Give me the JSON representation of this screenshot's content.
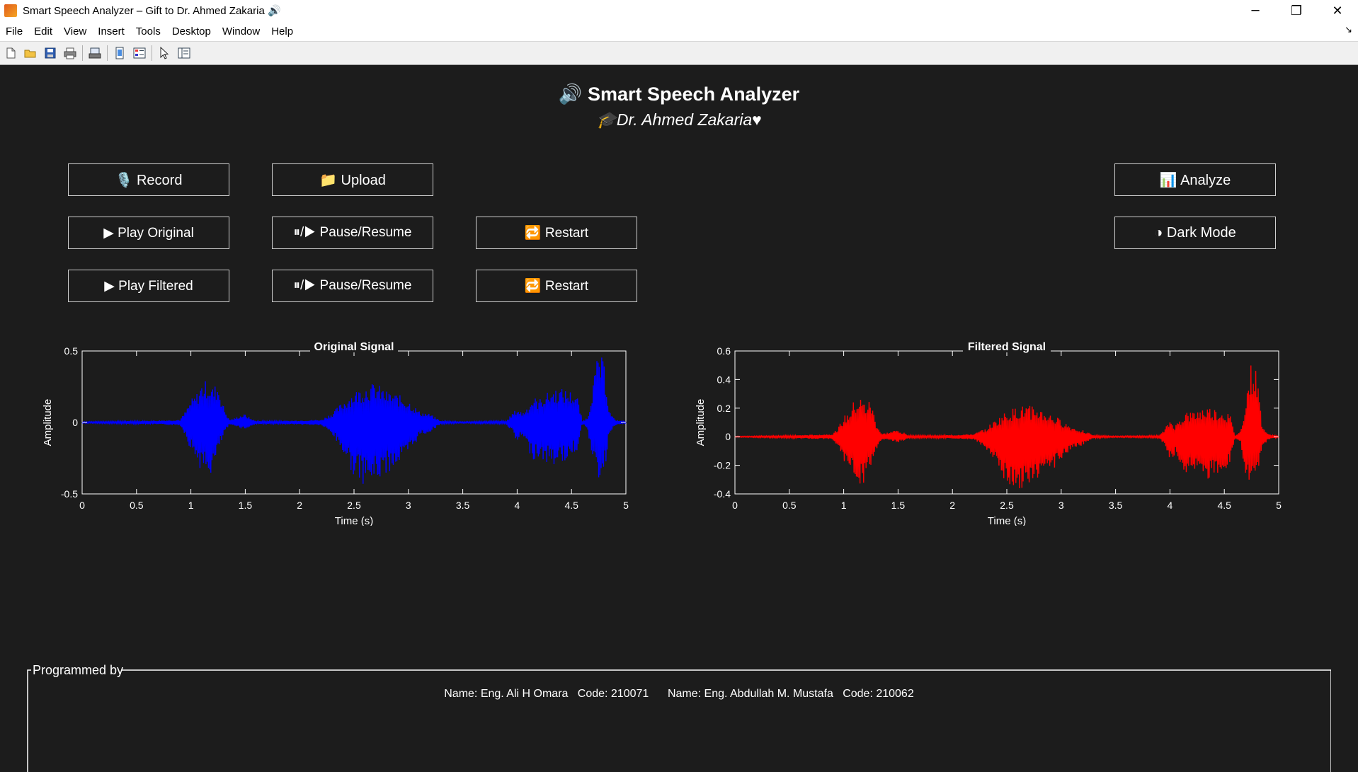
{
  "window": {
    "title": "Smart Speech Analyzer – Gift to Dr. Ahmed Zakaria 🔊",
    "controls": [
      "─",
      "❐",
      "✕"
    ]
  },
  "menubar": {
    "items": [
      "File",
      "Edit",
      "View",
      "Insert",
      "Tools",
      "Desktop",
      "Window",
      "Help"
    ]
  },
  "toolbar": {
    "icons": [
      "new-file-icon",
      "open-folder-icon",
      "save-icon",
      "print-icon",
      "print-preview-icon",
      "link-plot-icon",
      "insert-legend-icon",
      "pointer-icon",
      "property-inspector-icon"
    ]
  },
  "header": {
    "title": "🔊 Smart Speech Analyzer",
    "subtitle": "🎓Dr. Ahmed Zakaria♥"
  },
  "buttons": {
    "record": "🎙️ Record",
    "upload": "📁 Upload",
    "analyze": "📊 Analyze",
    "play_original": "▶ Play Original",
    "pause_original": "⏸/▶ Pause/Resume",
    "restart_original": "🔁 Restart",
    "dark_mode": "◑ Dark Mode",
    "play_filtered": "▶ Play Filtered",
    "pause_filtered": "⏸/▶ Pause/Resume",
    "restart_filtered": "🔁 Restart"
  },
  "colors": {
    "background": "#1c1c1c",
    "original_signal": "#0000ff",
    "filtered_signal": "#ff0000",
    "axes": "#ffffff"
  },
  "chart_data": [
    {
      "type": "line",
      "title": "Original Signal",
      "xlabel": "Time (s)",
      "ylabel": "Amplitude",
      "xlim": [
        0,
        5
      ],
      "ylim": [
        -0.5,
        0.5
      ],
      "xticks": [
        "0",
        "0.5",
        "1",
        "1.5",
        "2",
        "2.5",
        "3",
        "3.5",
        "4",
        "4.5",
        "5"
      ],
      "yticks": [
        "-0.5",
        "0",
        "0.5"
      ],
      "color": "#0000ff",
      "envelope": {
        "t": [
          0,
          0.5,
          0.9,
          0.95,
          1.0,
          1.05,
          1.1,
          1.15,
          1.2,
          1.25,
          1.3,
          1.35,
          1.4,
          1.45,
          1.5,
          1.55,
          1.6,
          1.8,
          2.0,
          2.2,
          2.3,
          2.4,
          2.5,
          2.6,
          2.7,
          2.8,
          2.9,
          3.0,
          3.1,
          3.2,
          3.3,
          3.5,
          3.9,
          3.95,
          4.0,
          4.05,
          4.1,
          4.15,
          4.2,
          4.25,
          4.3,
          4.35,
          4.4,
          4.45,
          4.5,
          4.55,
          4.6,
          4.65,
          4.7,
          4.75,
          4.8,
          4.85,
          4.9,
          5.0
        ],
        "upper": [
          0.005,
          0.01,
          0.02,
          0.08,
          0.16,
          0.2,
          0.28,
          0.3,
          0.25,
          0.28,
          0.12,
          0.02,
          0.03,
          0.05,
          0.06,
          0.03,
          0.01,
          0.01,
          0.015,
          0.02,
          0.07,
          0.15,
          0.22,
          0.26,
          0.28,
          0.22,
          0.2,
          0.16,
          0.08,
          0.06,
          0.01,
          0.005,
          0.01,
          0.06,
          0.1,
          0.07,
          0.12,
          0.18,
          0.16,
          0.2,
          0.22,
          0.24,
          0.24,
          0.23,
          0.22,
          0.2,
          0.01,
          0.04,
          0.3,
          0.5,
          0.42,
          0.08,
          0.02,
          0.005
        ],
        "lower": [
          -0.005,
          -0.01,
          -0.02,
          -0.09,
          -0.2,
          -0.26,
          -0.35,
          -0.38,
          -0.36,
          -0.22,
          -0.1,
          -0.02,
          -0.02,
          -0.04,
          -0.05,
          -0.03,
          -0.01,
          -0.01,
          -0.015,
          -0.02,
          -0.09,
          -0.22,
          -0.38,
          -0.44,
          -0.42,
          -0.36,
          -0.3,
          -0.24,
          -0.1,
          -0.07,
          -0.01,
          -0.005,
          -0.01,
          -0.07,
          -0.15,
          -0.1,
          -0.2,
          -0.26,
          -0.25,
          -0.28,
          -0.3,
          -0.3,
          -0.29,
          -0.27,
          -0.24,
          -0.2,
          -0.01,
          -0.05,
          -0.35,
          -0.4,
          -0.38,
          -0.08,
          -0.02,
          -0.005
        ]
      }
    },
    {
      "type": "line",
      "title": "Filtered Signal",
      "xlabel": "Time (s)",
      "ylabel": "Amplitude",
      "xlim": [
        0,
        5
      ],
      "ylim": [
        -0.4,
        0.6
      ],
      "xticks": [
        "0",
        "0.5",
        "1",
        "1.5",
        "2",
        "2.5",
        "3",
        "3.5",
        "4",
        "4.5",
        "5"
      ],
      "yticks": [
        "-0.4",
        "-0.2",
        "0",
        "0.2",
        "0.4",
        "0.6"
      ],
      "color": "#ff0000",
      "envelope": {
        "t": [
          0,
          0.5,
          0.9,
          0.95,
          1.0,
          1.05,
          1.1,
          1.15,
          1.2,
          1.25,
          1.3,
          1.35,
          1.4,
          1.45,
          1.5,
          1.55,
          1.6,
          1.8,
          2.0,
          2.2,
          2.3,
          2.4,
          2.5,
          2.6,
          2.7,
          2.8,
          2.9,
          3.0,
          3.1,
          3.2,
          3.3,
          3.5,
          3.9,
          3.95,
          4.0,
          4.05,
          4.1,
          4.15,
          4.2,
          4.25,
          4.3,
          4.35,
          4.4,
          4.45,
          4.5,
          4.55,
          4.6,
          4.65,
          4.7,
          4.75,
          4.8,
          4.85,
          4.9,
          5.0
        ],
        "upper": [
          0.003,
          0.008,
          0.02,
          0.07,
          0.14,
          0.18,
          0.26,
          0.28,
          0.24,
          0.26,
          0.1,
          0.02,
          0.03,
          0.04,
          0.05,
          0.03,
          0.01,
          0.008,
          0.012,
          0.02,
          0.06,
          0.12,
          0.18,
          0.21,
          0.22,
          0.2,
          0.16,
          0.12,
          0.07,
          0.05,
          0.01,
          0.004,
          0.008,
          0.05,
          0.12,
          0.08,
          0.14,
          0.18,
          0.17,
          0.19,
          0.2,
          0.21,
          0.2,
          0.19,
          0.18,
          0.16,
          0.01,
          0.04,
          0.3,
          0.53,
          0.45,
          0.08,
          0.02,
          0.004
        ],
        "lower": [
          -0.003,
          -0.008,
          -0.02,
          -0.08,
          -0.18,
          -0.22,
          -0.31,
          -0.35,
          -0.33,
          -0.2,
          -0.09,
          -0.02,
          -0.02,
          -0.03,
          -0.04,
          -0.03,
          -0.01,
          -0.008,
          -0.012,
          -0.02,
          -0.08,
          -0.2,
          -0.33,
          -0.37,
          -0.35,
          -0.3,
          -0.24,
          -0.18,
          -0.08,
          -0.06,
          -0.01,
          -0.004,
          -0.008,
          -0.06,
          -0.18,
          -0.12,
          -0.22,
          -0.27,
          -0.25,
          -0.27,
          -0.28,
          -0.3,
          -0.29,
          -0.27,
          -0.25,
          -0.2,
          -0.01,
          -0.05,
          -0.33,
          -0.37,
          -0.35,
          -0.08,
          -0.02,
          -0.004
        ]
      }
    }
  ],
  "footer": {
    "legend": "Programmed by",
    "credits": "Name: Eng. Ali H Omara   Code: 210071      Name: Eng. Abdullah M. Mustafa   Code: 210062"
  }
}
